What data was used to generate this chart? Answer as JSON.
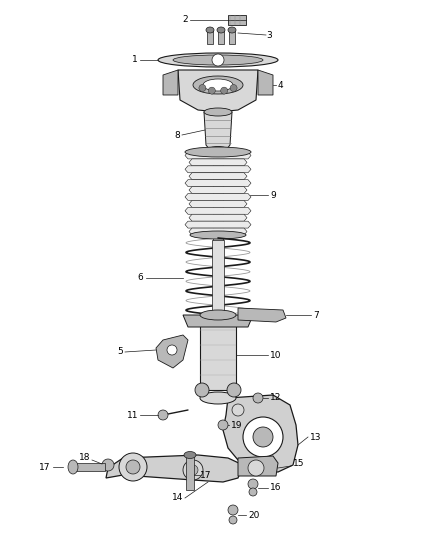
{
  "bg_color": "#ffffff",
  "fig_width": 4.38,
  "fig_height": 5.33,
  "dpi": 100,
  "label_fs": 6.5,
  "line_color": "#1a1a1a",
  "fill_light": "#d8d8d8",
  "fill_mid": "#b8b8b8",
  "fill_dark": "#888888"
}
